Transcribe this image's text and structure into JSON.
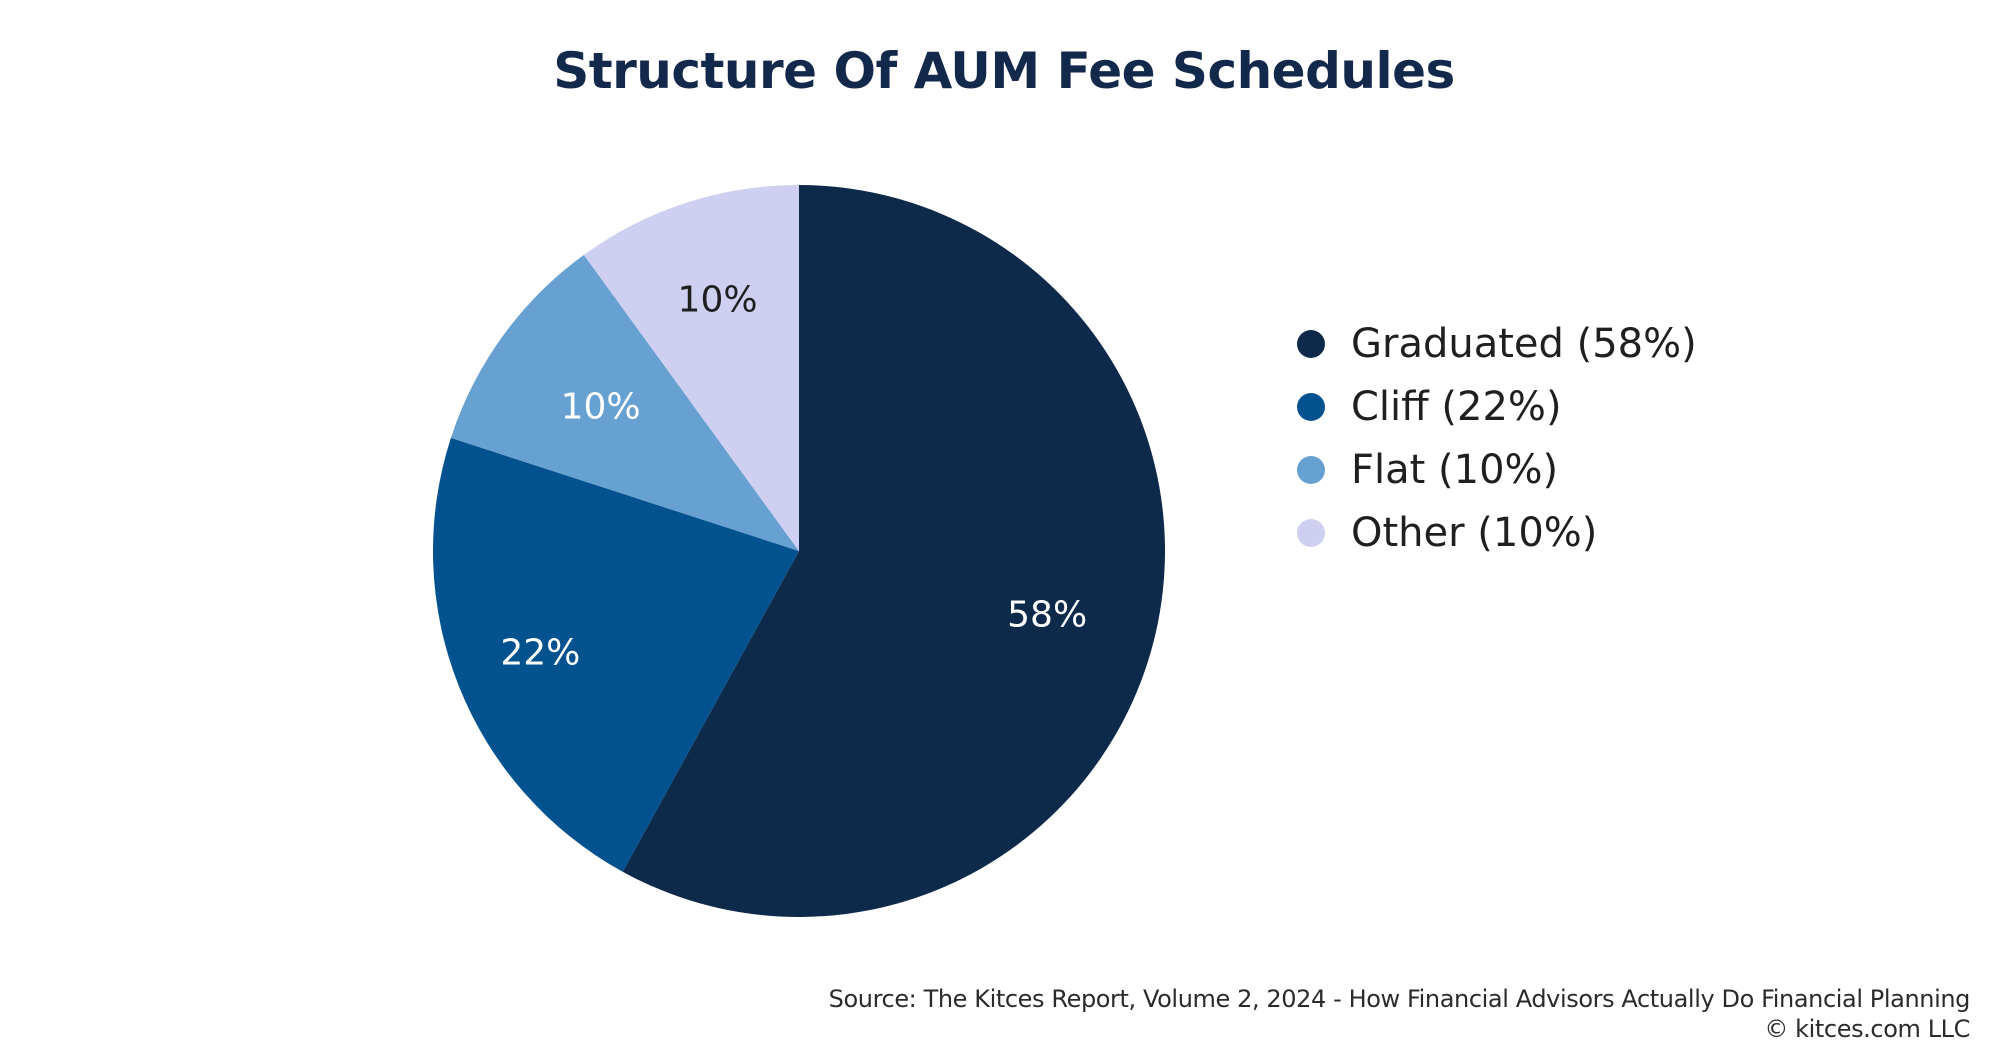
{
  "title": "Structure Of AUM Fee Schedules",
  "legend": {
    "items": [
      {
        "label": "Graduated (58%)",
        "color": "#0d2a4b"
      },
      {
        "label": "Cliff (22%)",
        "color": "#02528f"
      },
      {
        "label": "Flat (10%)",
        "color": "#67a1d1"
      },
      {
        "label": "Other (10%)",
        "color": "#cfd0f1"
      }
    ]
  },
  "footer": {
    "source": "Source: The Kitces Report, Volume 2, 2024 - How Financial Advisors Actually Do Financial Planning",
    "copyright": "© kitces.com LLC"
  },
  "chart_data": {
    "type": "pie",
    "title": "Structure Of AUM Fee Schedules",
    "categories": [
      "Graduated",
      "Cliff",
      "Flat",
      "Other"
    ],
    "values": [
      58,
      22,
      10,
      10
    ],
    "unit": "%",
    "slice_labels": [
      "58%",
      "22%",
      "10%",
      "10%"
    ],
    "colors": [
      "#0d2a4b",
      "#02528f",
      "#67a1d1",
      "#cfd0f1"
    ],
    "label_colors": [
      "#ffffff",
      "#ffffff",
      "#ffffff",
      "#1f1f1f"
    ],
    "start_angle": "12 o'clock",
    "direction": "clockwise",
    "legend_position": "right",
    "legend_entries": [
      "Graduated (58%)",
      "Cliff (22%)",
      "Flat (10%)",
      "Other (10%)"
    ],
    "source": "Source: The Kitces Report, Volume 2, 2024 - How Financial Advisors Actually Do Financial Planning",
    "copyright": "© kitces.com LLC"
  }
}
